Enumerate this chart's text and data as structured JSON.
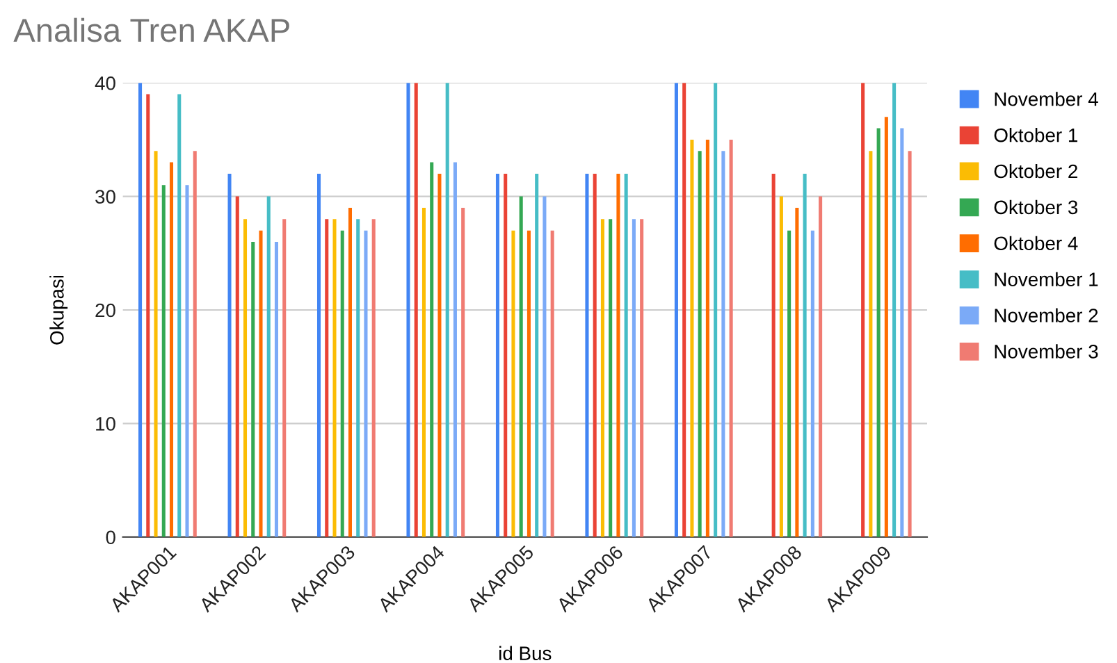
{
  "chart_data": {
    "type": "bar",
    "title": "Analisa Tren AKAP",
    "xlabel": "id Bus",
    "ylabel": "Okupasi",
    "categories": [
      "AKAP001",
      "AKAP002",
      "AKAP003",
      "AKAP004",
      "AKAP005",
      "AKAP006",
      "AKAP007",
      "AKAP008",
      "AKAP009"
    ],
    "series": [
      {
        "name": "November 4",
        "color": "#4285f4",
        "values": [
          40,
          32,
          32,
          40,
          32,
          32,
          40,
          null,
          null
        ]
      },
      {
        "name": "Oktober 1",
        "color": "#ea4335",
        "values": [
          39,
          30,
          28,
          40,
          32,
          32,
          40,
          32,
          40
        ]
      },
      {
        "name": "Oktober 2",
        "color": "#fbbc04",
        "values": [
          34,
          28,
          28,
          29,
          27,
          28,
          35,
          30,
          34
        ]
      },
      {
        "name": "Oktober 3",
        "color": "#34a853",
        "values": [
          31,
          26,
          27,
          33,
          30,
          28,
          34,
          27,
          36
        ]
      },
      {
        "name": "Oktober 4",
        "color": "#ff6d01",
        "values": [
          33,
          27,
          29,
          32,
          27,
          32,
          35,
          29,
          37
        ]
      },
      {
        "name": "November 1",
        "color": "#46bdc6",
        "values": [
          39,
          30,
          28,
          40,
          32,
          32,
          40,
          32,
          40
        ]
      },
      {
        "name": "November 2",
        "color": "#7baaf7",
        "values": [
          31,
          26,
          27,
          33,
          30,
          28,
          34,
          27,
          36
        ]
      },
      {
        "name": "November 3",
        "color": "#f07b72",
        "values": [
          34,
          28,
          28,
          29,
          27,
          28,
          35,
          30,
          34
        ]
      }
    ],
    "ylim": [
      0,
      40
    ],
    "yticks": [
      0,
      10,
      20,
      30,
      40
    ],
    "grid": "y",
    "legend": "right"
  }
}
